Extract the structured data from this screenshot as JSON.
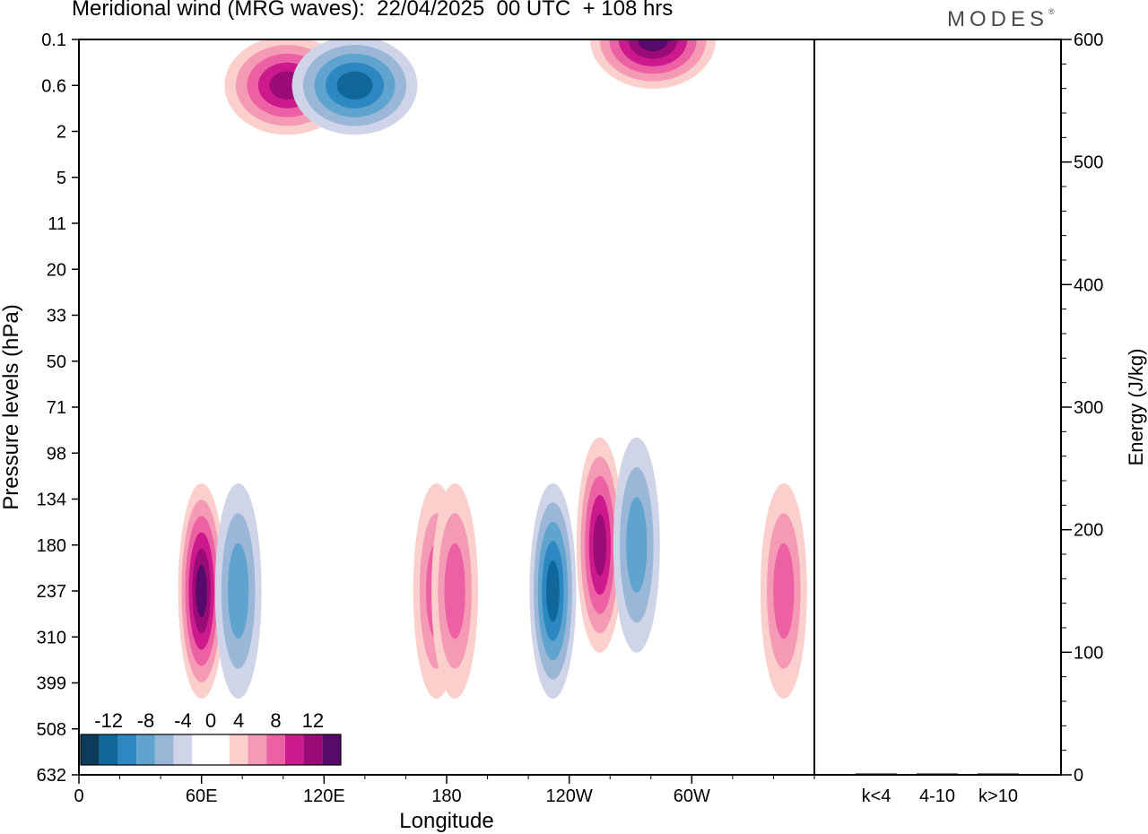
{
  "title": "Meridional wind (MRG waves):  22/04/2025  00 UTC  + 108 hrs",
  "brand": "MODES",
  "brand_mark": "®",
  "colors": {
    "neg": [
      "#0d3b5c",
      "#10679a",
      "#2d87c0",
      "#5fa3cf",
      "#9ab7d8",
      "#d0d4e8"
    ],
    "pos": [
      "#fbd0cc",
      "#f59ab5",
      "#ec61a4",
      "#cc1a8c",
      "#9a0b78",
      "#560a6b"
    ]
  },
  "chart_data": [
    {
      "type": "heatmap",
      "title": "Meridional wind (MRG waves):  22/04/2025  00 UTC  + 108 hrs",
      "xlabel": "Longitude",
      "ylabel": "Pressure levels (hPa)",
      "x_ticks": [
        "0",
        "60E",
        "120E",
        "180",
        "120W",
        "60W"
      ],
      "x_tick_values": [
        0,
        60,
        120,
        180,
        240,
        300
      ],
      "xlim": [
        0,
        360
      ],
      "y_ticks": [
        "0.1",
        "0.6",
        "2",
        "5",
        "11",
        "20",
        "33",
        "50",
        "71",
        "98",
        "134",
        "180",
        "237",
        "310",
        "399",
        "508",
        "632"
      ],
      "colorbar_labels": [
        "-12",
        "-8",
        "-4",
        "0",
        "4",
        "8",
        "12"
      ],
      "colorbar_levels": [
        -14,
        -12,
        -10,
        -8,
        -6,
        -4,
        -2,
        2,
        4,
        6,
        8,
        10,
        12,
        14
      ],
      "features": [
        {
          "lon": 60,
          "p": "237",
          "sign": 1,
          "peak": 12
        },
        {
          "lon": 78,
          "p": "237",
          "sign": -1,
          "peak": 6
        },
        {
          "lon": 102,
          "p": "0.6",
          "sign": 1,
          "peak": 9
        },
        {
          "lon": 135,
          "p": "0.6",
          "sign": -1,
          "peak": 9
        },
        {
          "lon": 175,
          "p": "237",
          "sign": 1,
          "peak": 6
        },
        {
          "lon": 184,
          "p": "237",
          "sign": 1,
          "peak": 6
        },
        {
          "lon": 232,
          "p": "237",
          "sign": -1,
          "peak": 9
        },
        {
          "lon": 255,
          "p": "180",
          "sign": 1,
          "peak": 9
        },
        {
          "lon": 273,
          "p": "180",
          "sign": -1,
          "peak": 6
        },
        {
          "lon": 281,
          "p": "0.1",
          "sign": 1,
          "peak": 12
        },
        {
          "lon": 345,
          "p": "237",
          "sign": 1,
          "peak": 6
        }
      ]
    },
    {
      "type": "bar",
      "categories": [
        "k<4",
        "4-10",
        "k>10"
      ],
      "values": [
        0,
        1,
        0
      ],
      "ylabel": "Energy (J/kg)",
      "ylim": [
        0,
        600
      ],
      "y_ticks": [
        0,
        100,
        200,
        300,
        400,
        500,
        600
      ]
    }
  ]
}
